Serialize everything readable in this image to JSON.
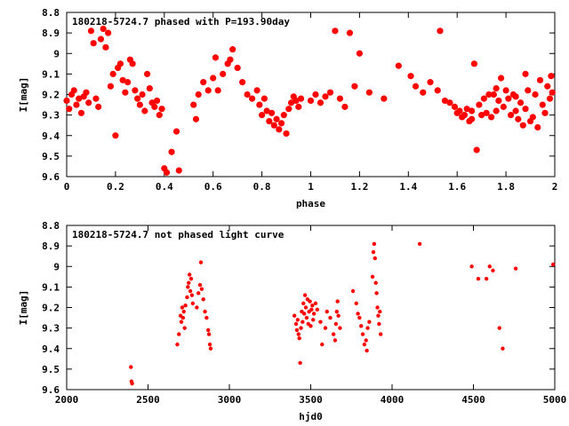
{
  "chart_data": [
    {
      "type": "scatter",
      "title": "180218-5724.7 phased with P=193.90day",
      "xlabel": "phase",
      "ylabel": "I[mag]",
      "xlim": [
        0,
        2
      ],
      "ylim": [
        8.8,
        9.6
      ],
      "y_inverted": true,
      "grid": false,
      "marker_color": "#ff0000",
      "marker": "filled-circle-large",
      "x_ticks": [
        "0",
        "0.2",
        "0.4",
        "0.6",
        "0.8",
        "1",
        "1.2",
        "1.4",
        "1.6",
        "1.8",
        "2"
      ],
      "x_tick_values": [
        0,
        0.2,
        0.4,
        0.6,
        0.8,
        1.0,
        1.2,
        1.4,
        1.6,
        1.8,
        2.0
      ],
      "y_ticks": [
        "8.8",
        "8.9",
        "9",
        "9.1",
        "9.2",
        "9.3",
        "9.4",
        "9.5",
        "9.6"
      ],
      "y_tick_values": [
        8.8,
        8.9,
        9.0,
        9.1,
        9.2,
        9.3,
        9.4,
        9.5,
        9.6
      ],
      "points": [
        [
          0.0,
          9.23
        ],
        [
          0.01,
          9.27
        ],
        [
          0.02,
          9.2
        ],
        [
          0.03,
          9.18
        ],
        [
          0.04,
          9.25
        ],
        [
          0.05,
          9.22
        ],
        [
          0.06,
          9.29
        ],
        [
          0.07,
          9.21
        ],
        [
          0.08,
          9.19
        ],
        [
          0.09,
          9.24
        ],
        [
          0.1,
          8.89
        ],
        [
          0.11,
          8.95
        ],
        [
          0.12,
          9.22
        ],
        [
          0.13,
          9.26
        ],
        [
          0.14,
          8.93
        ],
        [
          0.15,
          8.88
        ],
        [
          0.16,
          8.97
        ],
        [
          0.17,
          8.9
        ],
        [
          0.18,
          9.16
        ],
        [
          0.19,
          9.1
        ],
        [
          0.2,
          9.4
        ],
        [
          0.21,
          9.07
        ],
        [
          0.22,
          9.05
        ],
        [
          0.23,
          9.13
        ],
        [
          0.24,
          9.19
        ],
        [
          0.25,
          9.14
        ],
        [
          0.26,
          9.03
        ],
        [
          0.27,
          9.05
        ],
        [
          0.28,
          9.18
        ],
        [
          0.29,
          9.22
        ],
        [
          0.3,
          9.25
        ],
        [
          0.31,
          9.2
        ],
        [
          0.32,
          9.28
        ],
        [
          0.33,
          9.1
        ],
        [
          0.34,
          9.17
        ],
        [
          0.35,
          9.24
        ],
        [
          0.36,
          9.26
        ],
        [
          0.37,
          9.23
        ],
        [
          0.38,
          9.3
        ],
        [
          0.39,
          9.27
        ],
        [
          0.4,
          9.56
        ],
        [
          0.41,
          9.58
        ],
        [
          0.43,
          9.48
        ],
        [
          0.45,
          9.38
        ],
        [
          0.46,
          9.57
        ],
        [
          0.52,
          9.25
        ],
        [
          0.53,
          9.32
        ],
        [
          0.54,
          9.2
        ],
        [
          0.56,
          9.14
        ],
        [
          0.58,
          9.18
        ],
        [
          0.6,
          9.12
        ],
        [
          0.61,
          9.02
        ],
        [
          0.62,
          9.18
        ],
        [
          0.64,
          9.1
        ],
        [
          0.66,
          9.05
        ],
        [
          0.67,
          9.03
        ],
        [
          0.68,
          8.98
        ],
        [
          0.7,
          9.07
        ],
        [
          0.72,
          9.14
        ],
        [
          0.74,
          9.2
        ],
        [
          0.76,
          9.22
        ],
        [
          0.78,
          9.18
        ],
        [
          0.79,
          9.25
        ],
        [
          0.8,
          9.3
        ],
        [
          0.81,
          9.22
        ],
        [
          0.82,
          9.28
        ],
        [
          0.83,
          9.33
        ],
        [
          0.84,
          9.29
        ],
        [
          0.85,
          9.35
        ],
        [
          0.86,
          9.32
        ],
        [
          0.87,
          9.37
        ],
        [
          0.88,
          9.34
        ],
        [
          0.89,
          9.3
        ],
        [
          0.9,
          9.39
        ],
        [
          0.91,
          9.27
        ],
        [
          0.92,
          9.24
        ],
        [
          0.93,
          9.21
        ],
        [
          0.94,
          9.23
        ],
        [
          0.95,
          9.26
        ],
        [
          0.96,
          9.22
        ],
        [
          1.0,
          9.23
        ],
        [
          1.02,
          9.2
        ],
        [
          1.04,
          9.24
        ],
        [
          1.06,
          9.21
        ],
        [
          1.08,
          9.19
        ],
        [
          1.1,
          8.89
        ],
        [
          1.12,
          9.22
        ],
        [
          1.14,
          9.26
        ],
        [
          1.16,
          8.9
        ],
        [
          1.18,
          9.16
        ],
        [
          1.2,
          9.0
        ],
        [
          1.24,
          9.19
        ],
        [
          1.3,
          9.22
        ],
        [
          1.36,
          9.06
        ],
        [
          1.41,
          9.11
        ],
        [
          1.43,
          9.16
        ],
        [
          1.46,
          9.19
        ],
        [
          1.49,
          9.14
        ],
        [
          1.52,
          9.18
        ],
        [
          1.53,
          8.89
        ],
        [
          1.55,
          9.23
        ],
        [
          1.57,
          9.24
        ],
        [
          1.59,
          9.26
        ],
        [
          1.6,
          9.29
        ],
        [
          1.61,
          9.28
        ],
        [
          1.62,
          9.31
        ],
        [
          1.63,
          9.3
        ],
        [
          1.64,
          9.27
        ],
        [
          1.65,
          9.33
        ],
        [
          1.66,
          9.32
        ],
        [
          1.67,
          9.05
        ],
        [
          1.68,
          9.47
        ],
        [
          1.69,
          9.25
        ],
        [
          1.7,
          9.3
        ],
        [
          1.71,
          9.22
        ],
        [
          1.72,
          9.29
        ],
        [
          1.73,
          9.2
        ],
        [
          1.74,
          9.31
        ],
        [
          1.75,
          9.2
        ],
        [
          1.76,
          9.17
        ],
        [
          1.77,
          9.23
        ],
        [
          1.78,
          9.12
        ],
        [
          1.79,
          9.26
        ],
        [
          1.8,
          9.18
        ],
        [
          1.81,
          9.22
        ],
        [
          1.82,
          9.3
        ],
        [
          1.83,
          9.2
        ],
        [
          1.84,
          9.28
        ],
        [
          1.85,
          9.32
        ],
        [
          1.86,
          9.24
        ],
        [
          1.87,
          9.35
        ],
        [
          1.88,
          9.27
        ],
        [
          1.89,
          9.18
        ],
        [
          1.9,
          9.33
        ],
        [
          1.91,
          9.31
        ],
        [
          1.92,
          9.2
        ],
        [
          1.93,
          9.36
        ],
        [
          1.94,
          9.13
        ],
        [
          1.95,
          9.25
        ],
        [
          1.96,
          9.29
        ],
        [
          1.97,
          9.16
        ],
        [
          1.98,
          9.22
        ],
        [
          1.99,
          9.19
        ],
        [
          1.985,
          9.11
        ],
        [
          1.88,
          9.1
        ],
        [
          1.84,
          9.21
        ],
        [
          1.76,
          9.28
        ],
        [
          1.66,
          9.28
        ]
      ]
    },
    {
      "type": "scatter",
      "title": "180218-5724.7 not phased light curve",
      "xlabel": "hjd0",
      "ylabel": "I[mag]",
      "xlim": [
        2000,
        5000
      ],
      "ylim": [
        8.8,
        9.6
      ],
      "y_inverted": true,
      "grid": false,
      "marker_color": "#ff0000",
      "marker": "filled-circle-small",
      "x_ticks": [
        "2000",
        "2500",
        "3000",
        "3500",
        "4000",
        "4500",
        "5000"
      ],
      "x_tick_values": [
        2000,
        2500,
        3000,
        3500,
        4000,
        4500,
        5000
      ],
      "y_ticks": [
        "8.8",
        "8.9",
        "9",
        "9.1",
        "9.2",
        "9.3",
        "9.4",
        "9.5",
        "9.6"
      ],
      "y_tick_values": [
        8.8,
        8.9,
        9.0,
        9.1,
        9.2,
        9.3,
        9.4,
        9.5,
        9.6
      ],
      "points": [
        [
          2395,
          9.49
        ],
        [
          2398,
          9.56
        ],
        [
          2402,
          9.57
        ],
        [
          2680,
          9.38
        ],
        [
          2690,
          9.33
        ],
        [
          2700,
          9.24
        ],
        [
          2705,
          9.27
        ],
        [
          2710,
          9.2
        ],
        [
          2715,
          9.25
        ],
        [
          2720,
          9.22
        ],
        [
          2725,
          9.3
        ],
        [
          2730,
          9.19
        ],
        [
          2740,
          9.15
        ],
        [
          2745,
          9.1
        ],
        [
          2750,
          9.08
        ],
        [
          2755,
          9.04
        ],
        [
          2760,
          9.12
        ],
        [
          2765,
          9.06
        ],
        [
          2770,
          9.14
        ],
        [
          2775,
          9.18
        ],
        [
          2800,
          9.2
        ],
        [
          2810,
          9.13
        ],
        [
          2820,
          9.09
        ],
        [
          2825,
          8.98
        ],
        [
          2830,
          9.11
        ],
        [
          2840,
          9.16
        ],
        [
          2850,
          9.22
        ],
        [
          2860,
          9.25
        ],
        [
          2870,
          9.31
        ],
        [
          2875,
          9.33
        ],
        [
          2880,
          9.38
        ],
        [
          2885,
          9.4
        ],
        [
          3400,
          9.24
        ],
        [
          3410,
          9.28
        ],
        [
          3415,
          9.31
        ],
        [
          3420,
          9.26
        ],
        [
          3425,
          9.33
        ],
        [
          3430,
          9.35
        ],
        [
          3435,
          9.47
        ],
        [
          3440,
          9.3
        ],
        [
          3445,
          9.22
        ],
        [
          3450,
          9.27
        ],
        [
          3455,
          9.18
        ],
        [
          3460,
          9.23
        ],
        [
          3465,
          9.14
        ],
        [
          3470,
          9.2
        ],
        [
          3475,
          9.25
        ],
        [
          3480,
          9.16
        ],
        [
          3485,
          9.28
        ],
        [
          3490,
          9.22
        ],
        [
          3495,
          9.17
        ],
        [
          3500,
          9.29
        ],
        [
          3505,
          9.21
        ],
        [
          3510,
          9.19
        ],
        [
          3515,
          9.26
        ],
        [
          3520,
          9.23
        ],
        [
          3530,
          9.18
        ],
        [
          3540,
          9.21
        ],
        [
          3560,
          9.27
        ],
        [
          3570,
          9.38
        ],
        [
          3590,
          9.3
        ],
        [
          3600,
          9.22
        ],
        [
          3620,
          9.25
        ],
        [
          3640,
          9.33
        ],
        [
          3650,
          9.36
        ],
        [
          3655,
          9.28
        ],
        [
          3660,
          9.22
        ],
        [
          3665,
          9.17
        ],
        [
          3670,
          9.24
        ],
        [
          3680,
          9.3
        ],
        [
          3760,
          9.12
        ],
        [
          3780,
          9.18
        ],
        [
          3790,
          9.23
        ],
        [
          3800,
          9.25
        ],
        [
          3810,
          9.29
        ],
        [
          3820,
          9.33
        ],
        [
          3830,
          9.38
        ],
        [
          3840,
          9.36
        ],
        [
          3845,
          9.41
        ],
        [
          3850,
          9.3
        ],
        [
          3860,
          9.27
        ],
        [
          3880,
          9.05
        ],
        [
          3885,
          8.93
        ],
        [
          3890,
          8.89
        ],
        [
          3895,
          8.96
        ],
        [
          3900,
          9.08
        ],
        [
          3905,
          9.13
        ],
        [
          3910,
          9.2
        ],
        [
          3915,
          9.24
        ],
        [
          3920,
          9.28
        ],
        [
          3925,
          9.22
        ],
        [
          3930,
          9.33
        ],
        [
          4170,
          8.89
        ],
        [
          4490,
          9.0
        ],
        [
          4530,
          9.06
        ],
        [
          4580,
          9.06
        ],
        [
          4600,
          9.0
        ],
        [
          4620,
          9.02
        ],
        [
          4660,
          9.3
        ],
        [
          4680,
          9.4
        ],
        [
          4760,
          9.01
        ],
        [
          4990,
          8.99
        ]
      ]
    }
  ]
}
